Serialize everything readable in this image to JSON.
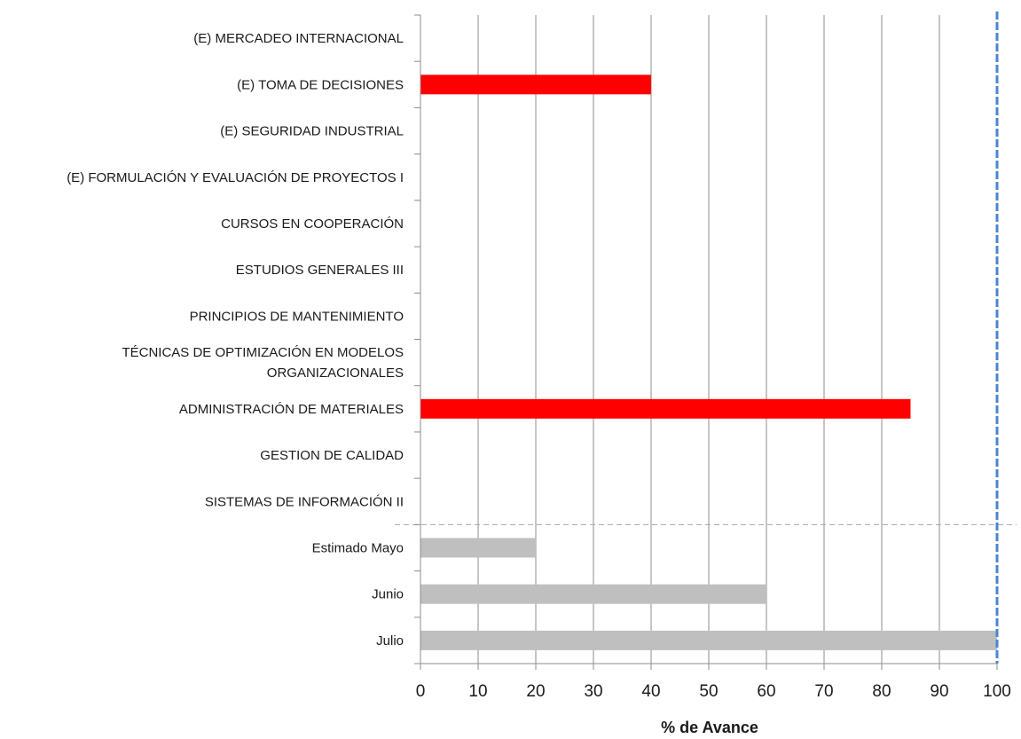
{
  "chart_data": {
    "type": "bar",
    "orientation": "horizontal",
    "categories": [
      "(E) MERCADEO INTERNACIONAL",
      "(E) TOMA DE DECISIONES",
      "(E) SEGURIDAD INDUSTRIAL",
      "(E) FORMULACIÓN Y EVALUACIÓN DE PROYECTOS I",
      "CURSOS EN COOPERACIÓN",
      "ESTUDIOS GENERALES III",
      "PRINCIPIOS DE MANTENIMIENTO",
      "TÉCNICAS DE OPTIMIZACIÓN EN MODELOS ORGANIZACIONALES",
      "ADMINISTRACIÓN DE MATERIALES",
      "GESTION DE CALIDAD",
      "SISTEMAS DE INFORMACIÓN II",
      "Estimado Mayo",
      "Junio",
      "Julio"
    ],
    "category_label_lines": [
      [
        "(E) MERCADEO INTERNACIONAL"
      ],
      [
        "(E) TOMA DE DECISIONES"
      ],
      [
        "(E) SEGURIDAD INDUSTRIAL"
      ],
      [
        "(E) FORMULACIÓN Y EVALUACIÓN DE PROYECTOS I"
      ],
      [
        "CURSOS EN COOPERACIÓN"
      ],
      [
        "ESTUDIOS GENERALES III"
      ],
      [
        "PRINCIPIOS DE MANTENIMIENTO"
      ],
      [
        "TÉCNICAS DE OPTIMIZACIÓN EN MODELOS",
        "ORGANIZACIONALES"
      ],
      [
        "ADMINISTRACIÓN DE MATERIALES"
      ],
      [
        "GESTION DE CALIDAD"
      ],
      [
        "SISTEMAS DE INFORMACIÓN II"
      ],
      [
        "Estimado Mayo"
      ],
      [
        "Junio"
      ],
      [
        "Julio"
      ]
    ],
    "values": [
      0,
      40,
      0,
      0,
      0,
      0,
      0,
      0,
      85,
      0,
      0,
      20,
      60,
      100
    ],
    "bar_colors": [
      "#ff0000",
      "#ff0000",
      "#ff0000",
      "#ff0000",
      "#ff0000",
      "#ff0000",
      "#ff0000",
      "#ff0000",
      "#ff0000",
      "#ff0000",
      "#ff0000",
      "#bfbfbf",
      "#bfbfbf",
      "#bfbfbf"
    ],
    "separator_after_index": 10,
    "reference_line": {
      "value": 100,
      "color": "#4a86d0",
      "style": "dashed"
    },
    "xlabel": "% de Avance",
    "ylabel": "",
    "title": "",
    "xlim": [
      0,
      100
    ],
    "xticks": [
      0,
      10,
      20,
      30,
      40,
      50,
      60,
      70,
      80,
      90,
      100
    ],
    "grid": true,
    "legend": "none"
  }
}
